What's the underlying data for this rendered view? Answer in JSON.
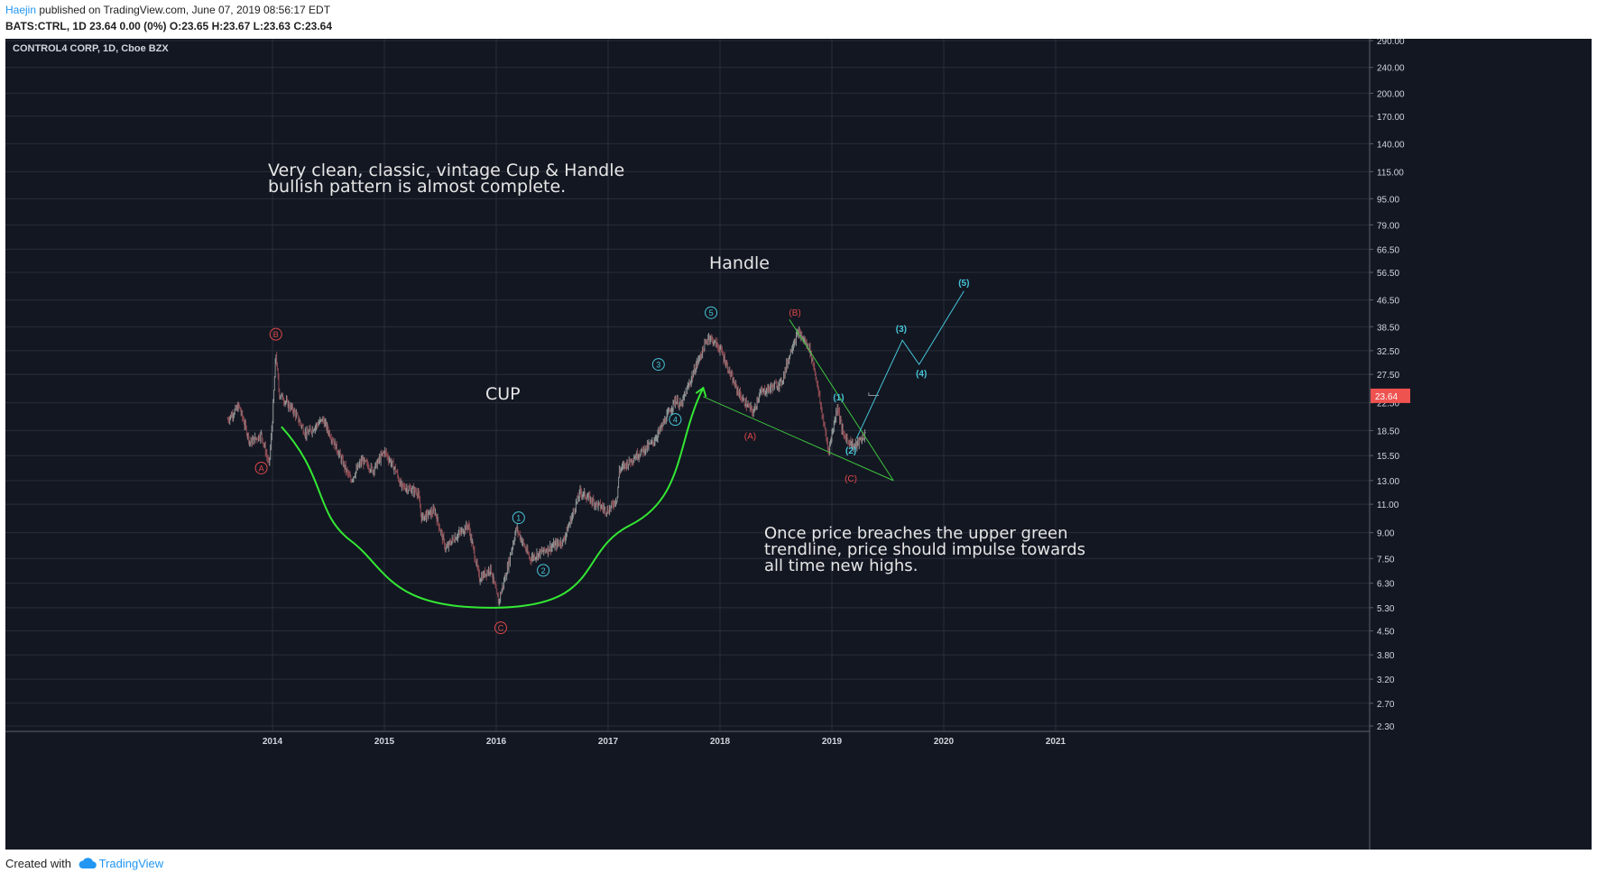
{
  "header": {
    "author": "Haejin",
    "published_text": "published on TradingView.com, June 07, 2019 08:56:17 EDT",
    "symbol": "BATS:CTRL, 1D",
    "last_change": "23.64 0.00 (0%)",
    "open_label": "O:",
    "open": "23.65",
    "high_label": "H:",
    "high": "23.67",
    "low_label": "L:",
    "low": "23.63",
    "close_label": "C:",
    "close": "23.64"
  },
  "chart_title": "CONTROL4 CORP, 1D, Cboe BZX",
  "footer": {
    "created_with": "Created with",
    "brand": "TradingView"
  },
  "colors": {
    "background": "#131722",
    "grid": "#2a2e39",
    "up_candle": "#8f9696",
    "down_candle": "#8b4a52",
    "cup_curve": "#33e833",
    "trendline": "#3ec43e",
    "wave_cyan": "#47c6d8",
    "wave_red": "#e04848",
    "price_tag": "#ef5350",
    "text": "#e6e6e6",
    "axis_text": "#d1d4dc"
  },
  "chart_data": {
    "type": "line",
    "scale": "log",
    "x_axis_ticks": [
      "2014",
      "2015",
      "2016",
      "2017",
      "2018",
      "2019",
      "2020",
      "2021"
    ],
    "y_axis_ticks": [
      "290.00",
      "240.00",
      "200.00",
      "170.00",
      "140.00",
      "115.00",
      "95.00",
      "79.00",
      "66.50",
      "56.50",
      "46.50",
      "38.50",
      "32.50",
      "27.50",
      "22.50",
      "18.50",
      "15.50",
      "13.00",
      "11.00",
      "9.00",
      "7.50",
      "6.30",
      "5.30",
      "4.50",
      "3.80",
      "3.20",
      "2.70",
      "2.30"
    ],
    "ylim": [
      2.2,
      300
    ],
    "last_price": "23.64",
    "series": [
      {
        "price_path": [
          [
            2013.6,
            20
          ],
          [
            2013.7,
            22
          ],
          [
            2013.8,
            17
          ],
          [
            2013.9,
            18
          ],
          [
            2013.97,
            14.5
          ],
          [
            2014.0,
            20
          ],
          [
            2014.03,
            32
          ],
          [
            2014.06,
            24
          ],
          [
            2014.2,
            21
          ],
          [
            2014.3,
            18
          ],
          [
            2014.45,
            20
          ],
          [
            2014.55,
            17
          ],
          [
            2014.7,
            13
          ],
          [
            2014.8,
            15
          ],
          [
            2014.9,
            14
          ],
          [
            2015.0,
            16
          ],
          [
            2015.1,
            14
          ],
          [
            2015.15,
            12.5
          ],
          [
            2015.3,
            12
          ],
          [
            2015.33,
            10
          ],
          [
            2015.45,
            10.5
          ],
          [
            2015.55,
            8
          ],
          [
            2015.6,
            8.5
          ],
          [
            2015.75,
            9.5
          ],
          [
            2015.85,
            6.5
          ],
          [
            2015.95,
            7
          ],
          [
            2016.02,
            5.5
          ],
          [
            2016.1,
            7
          ],
          [
            2016.18,
            9.3
          ],
          [
            2016.3,
            7.5
          ],
          [
            2016.45,
            8
          ],
          [
            2016.6,
            8.5
          ],
          [
            2016.65,
            9.5
          ],
          [
            2016.75,
            12
          ],
          [
            2016.9,
            11
          ],
          [
            2017.0,
            10.5
          ],
          [
            2017.08,
            11.5
          ],
          [
            2017.1,
            14
          ],
          [
            2017.25,
            15.5
          ],
          [
            2017.4,
            17
          ],
          [
            2017.48,
            19
          ],
          [
            2017.6,
            23
          ],
          [
            2017.65,
            22
          ],
          [
            2017.8,
            30
          ],
          [
            2017.9,
            36
          ],
          [
            2018.0,
            33
          ],
          [
            2018.05,
            30
          ],
          [
            2018.12,
            26
          ],
          [
            2018.2,
            23
          ],
          [
            2018.3,
            21
          ],
          [
            2018.35,
            24
          ],
          [
            2018.45,
            25
          ],
          [
            2018.55,
            26
          ],
          [
            2018.65,
            34
          ],
          [
            2018.7,
            37
          ],
          [
            2018.8,
            33
          ],
          [
            2018.85,
            28
          ],
          [
            2018.9,
            22
          ],
          [
            2018.97,
            16
          ],
          [
            2019.05,
            22
          ],
          [
            2019.1,
            18
          ],
          [
            2019.2,
            16.5
          ],
          [
            2019.3,
            18
          ]
        ]
      }
    ],
    "cup_curve": [
      [
        2014.08,
        19
      ],
      [
        2014.7,
        8.5
      ],
      [
        2016.0,
        5.3
      ],
      [
        2017.2,
        9.5
      ],
      [
        2017.85,
        25
      ]
    ],
    "trendlines": [
      {
        "name": "upper",
        "points": [
          [
            2018.62,
            40.5
          ],
          [
            2019.55,
            13.0
          ]
        ]
      },
      {
        "name": "lower",
        "points": [
          [
            2017.85,
            23.5
          ],
          [
            2019.55,
            13.0
          ]
        ]
      }
    ],
    "projection": [
      [
        2019.22,
        17.5
      ],
      [
        2019.63,
        35.0
      ],
      [
        2019.78,
        29.5
      ],
      [
        2020.18,
        49.5
      ]
    ],
    "wave_labels": [
      {
        "text": "A",
        "x": 2013.9,
        "y": 14.2,
        "color": "red",
        "circled": true
      },
      {
        "text": "B",
        "x": 2014.03,
        "y": 36.5,
        "color": "red",
        "circled": true
      },
      {
        "text": "C",
        "x": 2016.04,
        "y": 4.6,
        "color": "red",
        "circled": true
      },
      {
        "text": "1",
        "x": 2016.2,
        "y": 10.0,
        "color": "cyan",
        "circled": true
      },
      {
        "text": "2",
        "x": 2016.42,
        "y": 6.9,
        "color": "cyan",
        "circled": true
      },
      {
        "text": "3",
        "x": 2017.45,
        "y": 29.5,
        "color": "cyan",
        "circled": true
      },
      {
        "text": "4",
        "x": 2017.6,
        "y": 20.0,
        "color": "cyan",
        "circled": true
      },
      {
        "text": "5",
        "x": 2017.92,
        "y": 42.5,
        "color": "cyan",
        "circled": true
      },
      {
        "text": "(A)",
        "x": 2018.27,
        "y": 17.8,
        "color": "red",
        "circled": false
      },
      {
        "text": "(B)",
        "x": 2018.67,
        "y": 42.5,
        "color": "red",
        "circled": false
      },
      {
        "text": "(C)",
        "x": 2019.17,
        "y": 13.2,
        "color": "red",
        "circled": false
      },
      {
        "text": "(1)",
        "x": 2019.06,
        "y": 23.4,
        "color": "cyan",
        "circled": false
      },
      {
        "text": "(2)",
        "x": 2019.17,
        "y": 16.1,
        "color": "cyan",
        "circled": false
      },
      {
        "text": "(3)",
        "x": 2019.62,
        "y": 38.0,
        "color": "cyan",
        "circled": false
      },
      {
        "text": "(4)",
        "x": 2019.8,
        "y": 27.7,
        "color": "cyan",
        "circled": false
      },
      {
        "text": "(5)",
        "x": 2020.18,
        "y": 52.5,
        "color": "cyan",
        "circled": false
      }
    ],
    "annotations": [
      {
        "lines": [
          "Very clean, classic, vintage Cup & Handle",
          "bullish pattern is almost complete."
        ]
      },
      {
        "lines": [
          "Handle"
        ]
      },
      {
        "lines": [
          "CUP"
        ]
      },
      {
        "lines": [
          "Once price breaches the upper green",
          "trendline, price should impulse towards",
          "all time new highs."
        ]
      }
    ]
  }
}
